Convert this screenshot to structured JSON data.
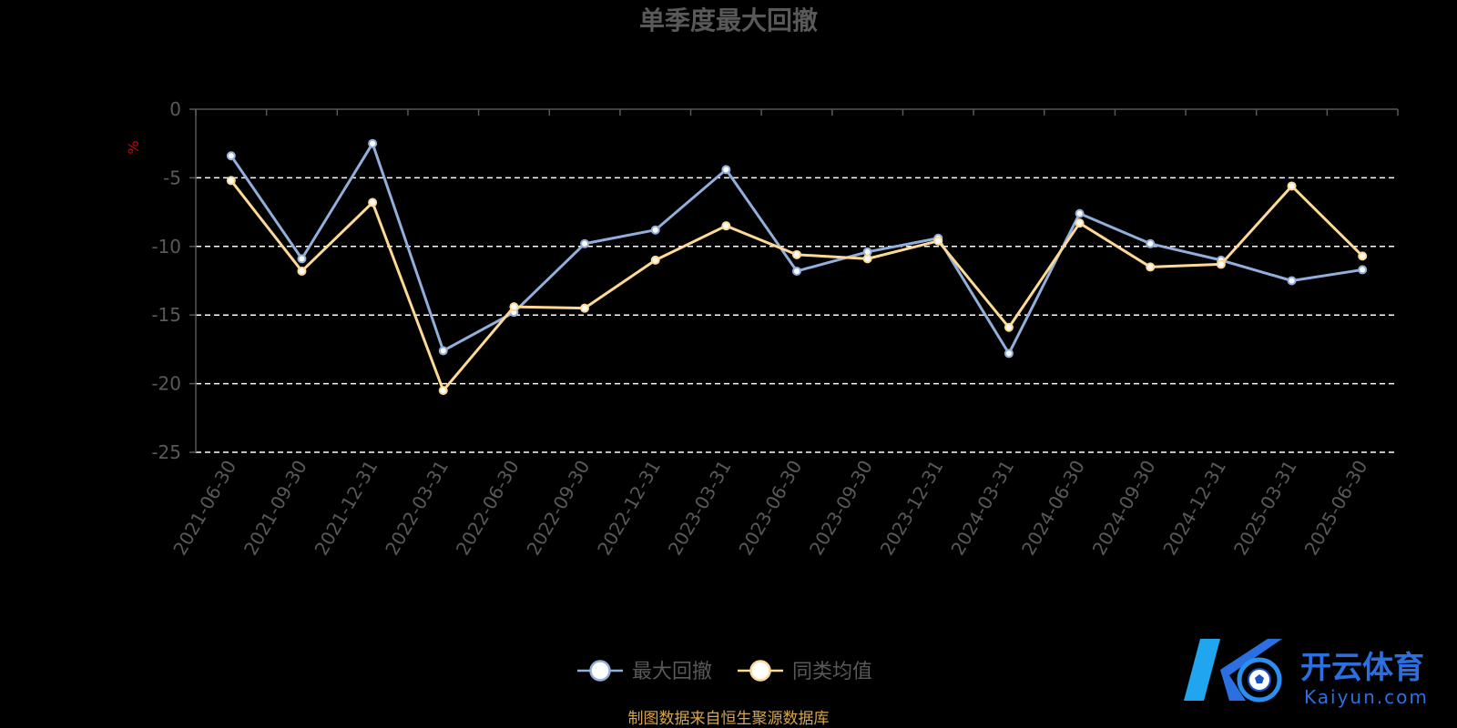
{
  "chart_data": {
    "type": "line",
    "title": "单季度最大回撤",
    "y_unit": "%",
    "ylim": [
      -25,
      0
    ],
    "yticks": [
      0,
      -5,
      -10,
      -15,
      -20,
      -25
    ],
    "grid": true,
    "legend_position": "bottom",
    "categories": [
      "2021-06-30",
      "2021-09-30",
      "2021-12-31",
      "2022-03-31",
      "2022-06-30",
      "2022-09-30",
      "2022-12-31",
      "2023-03-31",
      "2023-06-30",
      "2023-09-30",
      "2023-12-31",
      "2024-03-31",
      "2024-06-30",
      "2024-09-30",
      "2024-12-31",
      "2025-03-31",
      "2025-06-30"
    ],
    "series": [
      {
        "name": "最大回撤",
        "color": "#92aedb",
        "values": [
          -3.4,
          -10.9,
          -2.5,
          -17.6,
          -14.8,
          -9.8,
          -8.8,
          -4.4,
          -11.8,
          -10.4,
          -9.4,
          -17.8,
          -7.6,
          -9.8,
          -11.0,
          -12.5,
          -11.7
        ]
      },
      {
        "name": "同类均值",
        "color": "#fdd995",
        "values": [
          -5.2,
          -11.8,
          -6.8,
          -20.5,
          -14.4,
          -14.5,
          -11.0,
          -8.5,
          -10.6,
          -10.9,
          -9.6,
          -15.9,
          -8.3,
          -11.5,
          -11.3,
          -5.6,
          -10.7
        ]
      }
    ],
    "source_note": "制图数据来自恒生聚源数据库"
  },
  "watermark": {
    "brand": "开云体育",
    "domain": "Kaiyun.com",
    "color": "#2b6fe0"
  }
}
